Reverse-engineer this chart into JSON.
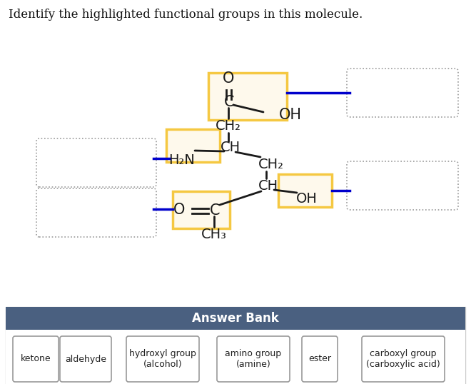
{
  "title": "Identify the highlighted functional groups in this molecule.",
  "title_fontsize": 12,
  "bg_color": "#ffffff",
  "answer_bank_bg": "#4a6080",
  "answer_bank_text_color": "#ffffff",
  "answer_bank_label": "Answer Bank",
  "answer_bank_items": [
    {
      "label": "ketone"
    },
    {
      "label": "aldehyde"
    },
    {
      "label": "hydroxyl group\n(alcohol)"
    },
    {
      "label": "amino group\n(amine)"
    },
    {
      "label": "ester"
    },
    {
      "label": "carboxyl group\n(carboxylic acid)"
    }
  ],
  "orange": "#f5c842",
  "blue": "#0000cc",
  "black": "#1a1a1a",
  "gray_dash": "#aaaaaa"
}
